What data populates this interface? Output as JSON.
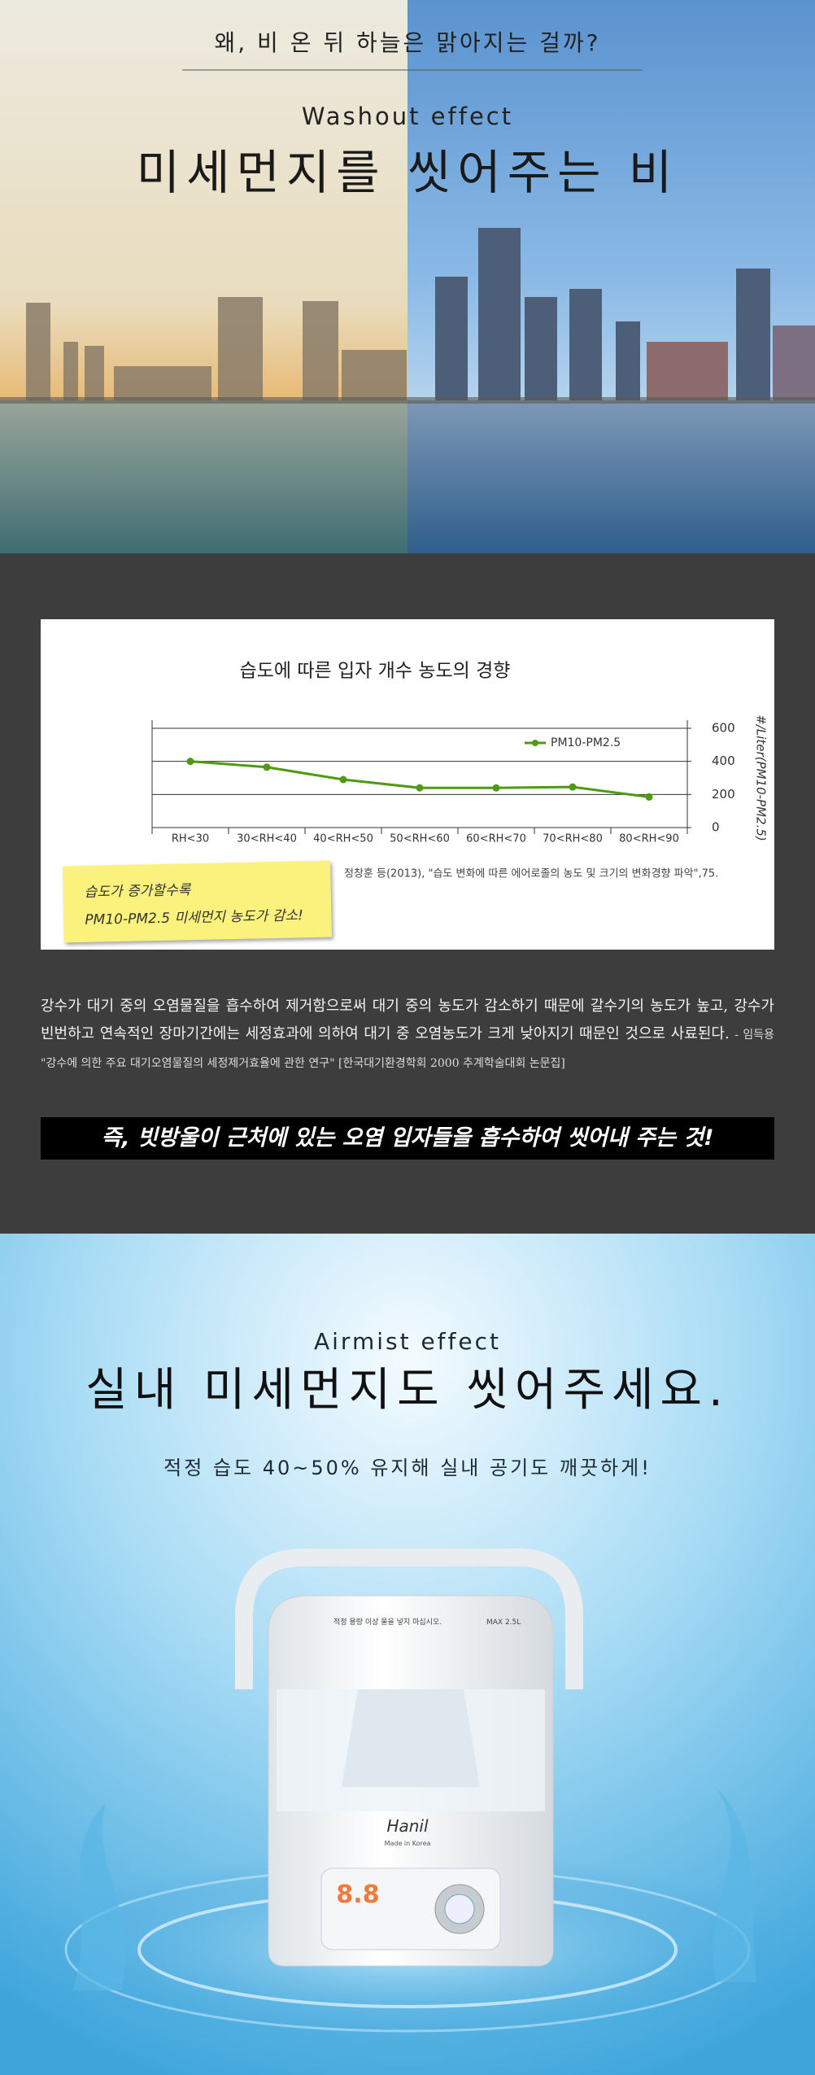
{
  "header": {
    "question": "왜, 비 온 뒤 하늘은 맑아지는 걸까?",
    "subtitle": "Washout effect",
    "title": "미세먼지를 씻어주는 비"
  },
  "chart_data": {
    "type": "line",
    "title": "습도에 따른 입자 개수 농도의 경향",
    "categories": [
      "RH<30",
      "30<RH<40",
      "40<RH<50",
      "50<RH<60",
      "60<RH<70",
      "70<RH<80",
      "80<RH<90"
    ],
    "series": [
      {
        "name": "PM10-PM2.5",
        "color": "#4f9a14",
        "values": [
          400,
          365,
          290,
          240,
          240,
          245,
          185
        ]
      }
    ],
    "y_label": "#/Liter(PM10-PM2.5)",
    "ylim": [
      0,
      600
    ],
    "yticks": [
      0,
      200,
      400,
      600
    ],
    "grid": true,
    "legend": "upper right",
    "source": "정창훈 등(2013), \"습도 변화에 따른 에어로졸의 농도 및 크기의 변화경향 파악\",75."
  },
  "note": {
    "lines": [
      "습도가 증가할수록",
      "PM10-PM2.5 미세먼지 농도가 감소!"
    ]
  },
  "paragraph": {
    "body": "강수가 대기 중의 오염물질을 흡수하여 제거함으로써 대기 중의 농도가 감소하기 때문에 갈수기의 농도가 높고, 강수가 빈번하고 연속적인 장마기간에는 세정효과에 의하여 대기 중 오염농도가 크게 낮아지기 때문인 것으로 사료된다.",
    "citation": "- 임득용 \"강수에 의한 주요 대기오염물질의 세정제거효율에 관한 연구\" [한국대기환경학회 2000 추계학술대회 논문집]"
  },
  "banner": "즉, 빗방울이 근처에 있는 오염 입자들을 흡수하여 씻어내 주는 것!",
  "airmist": {
    "subtitle": "Airmist effect",
    "title": "실내 미세먼지도 씻어주세요.",
    "caption": "적정 습도 40~50% 유지해 실내 공기도 깨끗하게!"
  },
  "device": {
    "warning": "적정 용량 이상 물을 넣지 마십시오.",
    "capacity": "MAX 2.5L",
    "brand": "Hanil",
    "origin": "Made in Korea",
    "display": "8.8"
  }
}
